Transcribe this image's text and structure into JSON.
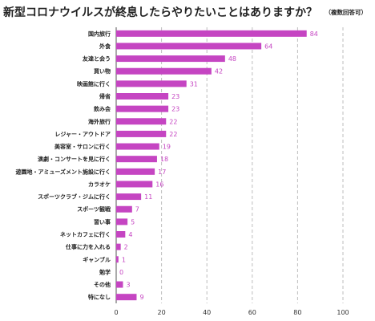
{
  "title": "新型コロナウイルスが終息したらやりたいことはありますか？",
  "note": "（複数回答可）",
  "colors": {
    "bar": "#c545c2",
    "value_text": "#c545c2",
    "grid": "#bdbdbd",
    "axis": "#555555",
    "text": "#222222"
  },
  "chart_data": {
    "type": "bar",
    "orientation": "horizontal",
    "categories": [
      "国内旅行",
      "外食",
      "友達と会う",
      "買い物",
      "映画館に行く",
      "帰省",
      "飲み会",
      "海外旅行",
      "レジャー・アウトドア",
      "美容室・サロンに行く",
      "演劇・コンサートを見に行く",
      "遊園地・アミューズメント施設に行く",
      "カラオケ",
      "スポーツクラブ・ジムに行く",
      "スポーツ観戦",
      "習い事",
      "ネットカフェに行く",
      "仕事に力を入れる",
      "ギャンブル",
      "勉学",
      "その他",
      "特になし"
    ],
    "values": [
      84,
      64,
      48,
      42,
      31,
      23,
      23,
      22,
      22,
      19,
      18,
      17,
      16,
      11,
      7,
      5,
      4,
      2,
      1,
      0,
      3,
      9
    ],
    "xlim": [
      0,
      100
    ],
    "xticks": [
      0,
      20,
      40,
      60,
      80,
      100
    ],
    "grid": true,
    "legend": "none"
  }
}
